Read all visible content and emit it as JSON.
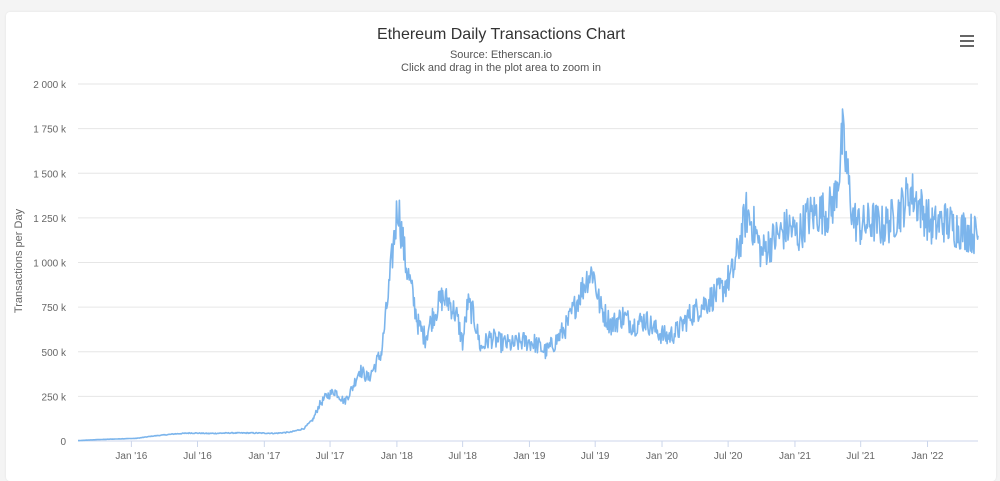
{
  "chart_data": {
    "type": "line",
    "title": "Ethereum Daily Transactions Chart",
    "subtitle": "Source: Etherscan.io",
    "hint": "Click and drag in the plot area to zoom in",
    "ylabel": "Transactions per Day",
    "xlabel": "",
    "ylim": [
      0,
      2000000
    ],
    "xlim": [
      "2015-08-07",
      "2022-05-20"
    ],
    "grid": true,
    "legend": "none",
    "y_ticks": [
      {
        "value": 0,
        "label": "0"
      },
      {
        "value": 250000,
        "label": "250 k"
      },
      {
        "value": 500000,
        "label": "500 k"
      },
      {
        "value": 750000,
        "label": "750 k"
      },
      {
        "value": 1000000,
        "label": "1 000 k"
      },
      {
        "value": 1250000,
        "label": "1 250 k"
      },
      {
        "value": 1500000,
        "label": "1 500 k"
      },
      {
        "value": 1750000,
        "label": "1 750 k"
      },
      {
        "value": 2000000,
        "label": "2 000 k"
      }
    ],
    "x_ticks": [
      {
        "date": "2016-01-01",
        "label": "Jan '16"
      },
      {
        "date": "2016-07-01",
        "label": "Jul '16"
      },
      {
        "date": "2017-01-01",
        "label": "Jan '17"
      },
      {
        "date": "2017-07-01",
        "label": "Jul '17"
      },
      {
        "date": "2018-01-01",
        "label": "Jan '18"
      },
      {
        "date": "2018-07-01",
        "label": "Jul '18"
      },
      {
        "date": "2019-01-01",
        "label": "Jan '19"
      },
      {
        "date": "2019-07-01",
        "label": "Jul '19"
      },
      {
        "date": "2020-01-01",
        "label": "Jan '20"
      },
      {
        "date": "2020-07-01",
        "label": "Jul '20"
      },
      {
        "date": "2021-01-01",
        "label": "Jan '21"
      },
      {
        "date": "2021-07-01",
        "label": "Jul '21"
      },
      {
        "date": "2022-01-01",
        "label": "Jan '22"
      }
    ],
    "series": [
      {
        "color": "#7cb5ec",
        "points": [
          [
            "2015-08-07",
            2000
          ],
          [
            "2015-10-01",
            8000
          ],
          [
            "2015-12-01",
            12000
          ],
          [
            "2016-01-15",
            15000
          ],
          [
            "2016-03-01",
            28000
          ],
          [
            "2016-05-01",
            40000
          ],
          [
            "2016-06-15",
            45000
          ],
          [
            "2016-08-01",
            42000
          ],
          [
            "2016-10-01",
            45000
          ],
          [
            "2016-12-01",
            45000
          ],
          [
            "2017-02-01",
            43000
          ],
          [
            "2017-03-15",
            50000
          ],
          [
            "2017-04-20",
            70000
          ],
          [
            "2017-05-15",
            120000
          ],
          [
            "2017-06-01",
            200000
          ],
          [
            "2017-06-20",
            250000
          ],
          [
            "2017-07-15",
            280000
          ],
          [
            "2017-08-10",
            220000
          ],
          [
            "2017-09-01",
            300000
          ],
          [
            "2017-09-20",
            400000
          ],
          [
            "2017-10-15",
            350000
          ],
          [
            "2017-11-01",
            420000
          ],
          [
            "2017-11-20",
            500000
          ],
          [
            "2017-12-10",
            850000
          ],
          [
            "2017-12-25",
            1150000
          ],
          [
            "2018-01-04",
            1330000
          ],
          [
            "2018-01-12",
            1200000
          ],
          [
            "2018-01-25",
            1000000
          ],
          [
            "2018-02-10",
            850000
          ],
          [
            "2018-03-01",
            650000
          ],
          [
            "2018-03-20",
            580000
          ],
          [
            "2018-04-10",
            700000
          ],
          [
            "2018-05-05",
            800000
          ],
          [
            "2018-05-25",
            780000
          ],
          [
            "2018-06-15",
            700000
          ],
          [
            "2018-07-01",
            550000
          ],
          [
            "2018-07-15",
            770000
          ],
          [
            "2018-08-01",
            700000
          ],
          [
            "2018-08-20",
            520000
          ],
          [
            "2018-09-15",
            580000
          ],
          [
            "2018-10-15",
            550000
          ],
          [
            "2018-11-15",
            540000
          ],
          [
            "2018-12-15",
            560000
          ],
          [
            "2019-01-15",
            550000
          ],
          [
            "2019-02-15",
            500000
          ],
          [
            "2019-03-15",
            560000
          ],
          [
            "2019-04-15",
            650000
          ],
          [
            "2019-05-15",
            800000
          ],
          [
            "2019-06-10",
            920000
          ],
          [
            "2019-06-25",
            950000
          ],
          [
            "2019-07-15",
            750000
          ],
          [
            "2019-08-15",
            650000
          ],
          [
            "2019-09-15",
            700000
          ],
          [
            "2019-10-15",
            650000
          ],
          [
            "2019-11-15",
            680000
          ],
          [
            "2019-12-15",
            620000
          ],
          [
            "2020-01-15",
            580000
          ],
          [
            "2020-02-15",
            620000
          ],
          [
            "2020-03-15",
            700000
          ],
          [
            "2020-04-15",
            750000
          ],
          [
            "2020-05-15",
            800000
          ],
          [
            "2020-06-15",
            850000
          ],
          [
            "2020-07-15",
            950000
          ],
          [
            "2020-08-01",
            1100000
          ],
          [
            "2020-08-20",
            1280000
          ],
          [
            "2020-09-10",
            1200000
          ],
          [
            "2020-10-01",
            1050000
          ],
          [
            "2020-10-20",
            1100000
          ],
          [
            "2020-11-15",
            1150000
          ],
          [
            "2020-12-15",
            1200000
          ],
          [
            "2021-01-10",
            1150000
          ],
          [
            "2021-02-01",
            1250000
          ],
          [
            "2021-03-01",
            1280000
          ],
          [
            "2021-04-01",
            1280000
          ],
          [
            "2021-04-20",
            1350000
          ],
          [
            "2021-05-05",
            1550000
          ],
          [
            "2021-05-12",
            1700000
          ],
          [
            "2021-05-25",
            1500000
          ],
          [
            "2021-06-10",
            1250000
          ],
          [
            "2021-07-01",
            1200000
          ],
          [
            "2021-08-01",
            1230000
          ],
          [
            "2021-09-01",
            1200000
          ],
          [
            "2021-10-01",
            1250000
          ],
          [
            "2021-10-20",
            1300000
          ],
          [
            "2021-11-15",
            1400000
          ],
          [
            "2021-12-15",
            1300000
          ],
          [
            "2022-01-15",
            1200000
          ],
          [
            "2022-02-15",
            1230000
          ],
          [
            "2022-03-15",
            1200000
          ],
          [
            "2022-04-15",
            1180000
          ],
          [
            "2022-05-20",
            1150000
          ]
        ]
      }
    ]
  },
  "menu": {
    "icon": "hamburger-menu-icon"
  }
}
